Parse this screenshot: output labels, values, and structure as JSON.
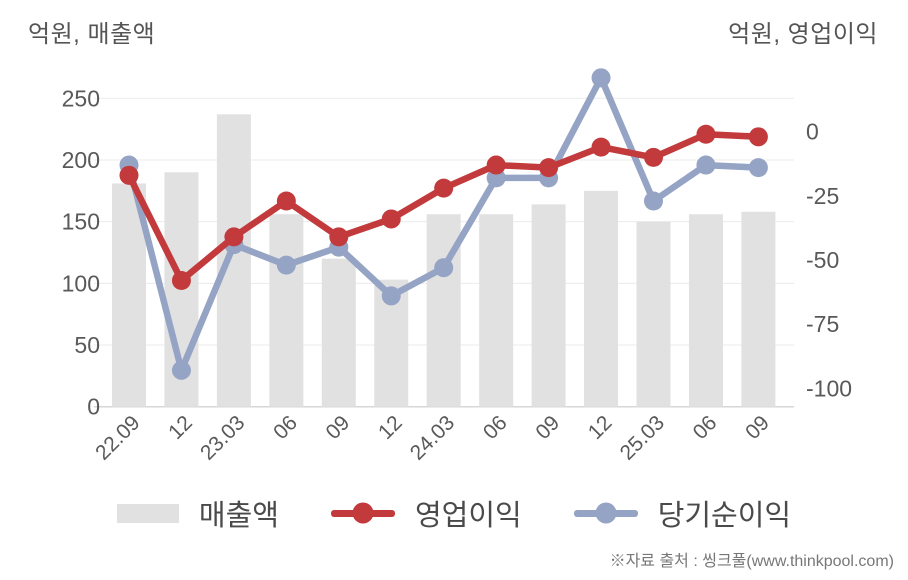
{
  "chart_data": {
    "type": "bar",
    "subtype": "bar-line-combo",
    "categories": [
      "22.09",
      "12",
      "23.03",
      "06",
      "09",
      "12",
      "24.03",
      "06",
      "09",
      "12",
      "25.03",
      "06",
      "09"
    ],
    "series": [
      {
        "name": "매출액",
        "type": "bar",
        "axis": "left",
        "color": "#e1e1e1",
        "values": [
          181,
          190,
          237,
          156,
          120,
          103,
          156,
          156,
          164,
          175,
          150,
          156,
          158
        ]
      },
      {
        "name": "영업이익",
        "type": "line",
        "axis": "right",
        "color": "#c23a3c",
        "values": [
          -17,
          -58,
          -41,
          -27,
          -41,
          -34,
          -22,
          -13,
          -14,
          -6,
          -10,
          -1,
          -2
        ]
      },
      {
        "name": "당기순이익",
        "type": "line",
        "axis": "right",
        "color": "#95a3c4",
        "values": [
          -13,
          -93,
          -44,
          -52,
          -45,
          -64,
          -53,
          -18,
          -18,
          21,
          -27,
          -13,
          -14
        ]
      }
    ],
    "left_axis": {
      "title": "억원, 매출액",
      "unit": "억원",
      "ticks": [
        0,
        50,
        100,
        150,
        200,
        250
      ]
    },
    "right_axis": {
      "title": "억원, 영업이익",
      "unit": "억원",
      "ticks": [
        0,
        -25,
        -50,
        -75,
        -100
      ]
    },
    "grid": true,
    "legend_position": "bottom"
  },
  "footer": {
    "source": "※자료 출처 : 씽크풀(www.thinkpool.com)"
  },
  "colors": {
    "bar": "#e1e1e1",
    "operating_profit": "#c23a3c",
    "net_income": "#95a3c4",
    "grid": "#ebebeb",
    "axis_line": "#d7d7d7",
    "tick_text": "#595959",
    "title_text": "#555555",
    "legend_text": "#4a4a4a",
    "source_text": "#777777",
    "background": "#ffffff"
  }
}
